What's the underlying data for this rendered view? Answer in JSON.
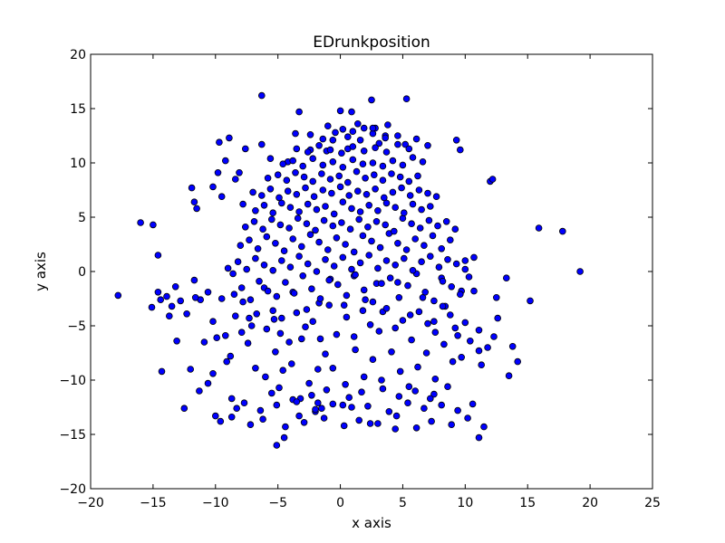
{
  "chart_data": {
    "type": "scatter",
    "title": "EDrunkposition",
    "xlabel": "x axis",
    "ylabel": "y axis",
    "xlim": [
      -20,
      25
    ],
    "ylim": [
      -20,
      20
    ],
    "xticks": [
      -20,
      -15,
      -10,
      -5,
      0,
      5,
      10,
      15,
      20,
      25
    ],
    "xtick_labels": [
      "−20",
      "−15",
      "−10",
      "−5",
      "0",
      "5",
      "10",
      "15",
      "20",
      "25"
    ],
    "yticks": [
      -20,
      -15,
      -10,
      -5,
      0,
      5,
      10,
      15,
      20
    ],
    "ytick_labels": [
      "−20",
      "−15",
      "−10",
      "−5",
      "0",
      "5",
      "10",
      "15",
      "20"
    ],
    "grid": false,
    "marker_color": "#0000ff",
    "x": [
      -17.8,
      -16.0,
      -15.0,
      -14.6,
      -13.9,
      -13.5,
      -14.3,
      -13.1,
      -12.5,
      -12.0,
      -11.9,
      -11.7,
      -11.5,
      -11.7,
      -11.2,
      -11.3,
      -10.9,
      -10.6,
      -10.2,
      -10.0,
      -10.2,
      -9.8,
      -9.7,
      -9.5,
      -9.2,
      -8.9,
      -8.7,
      -8.6,
      -8.4,
      -8.1,
      -7.8,
      -7.6,
      -7.4,
      -6.3,
      -6.3,
      -5.6,
      -5.1,
      -3.3,
      -3.6,
      -3.3,
      -2.4,
      -2.0,
      -1.1,
      0.0,
      0.9,
      1.0,
      2.5,
      2.8,
      3.1,
      5.3,
      -4.5,
      -4.2,
      -3.2,
      -1.8,
      -1.5,
      -0.6,
      0.2,
      0.6,
      1.9,
      2.4,
      3.6,
      4.4,
      5.2,
      6.1,
      7.0,
      7.5,
      9.3,
      9.6,
      11.1,
      12.0,
      12.2,
      15.9,
      17.8,
      19.2,
      15.2,
      14.2,
      13.5,
      12.5,
      11.3,
      10.7,
      11.1,
      12.6,
      13.8,
      13.3,
      10.0,
      9.7,
      9.2,
      8.4,
      8.1,
      7.5,
      6.6,
      5.6,
      4.6,
      3.4,
      2.9,
      2.0,
      1.1,
      0.3,
      -0.8,
      -1.7,
      -2.7,
      -3.8,
      -4.7,
      -5.4,
      -6.1,
      -7.1,
      -7.8,
      -8.4,
      -9.2,
      -9.5,
      -10.2,
      -10.6,
      -11.6,
      -12.3,
      -12.8,
      -13.2,
      -13.7,
      -14.4,
      -15.1,
      -14.6,
      -9.9,
      -9.1,
      -8.8,
      -7.9,
      -6.8,
      -6.0,
      -5.2,
      -4.6,
      -3.9,
      -3.1,
      -2.5,
      -1.8,
      -1.2,
      -0.6,
      0.4,
      1.2,
      1.9,
      2.6,
      3.3,
      4.1,
      4.8,
      5.5,
      6.2,
      6.9,
      7.6,
      8.3,
      9.0,
      9.7,
      10.4,
      11.1,
      11.8,
      12.3,
      -7.3,
      -6.7,
      -5.9,
      -5.3,
      -4.8,
      -4.1,
      -3.5,
      -2.8,
      -2.2,
      -1.6,
      -0.9,
      -0.3,
      0.5,
      1.1,
      1.8,
      2.4,
      3.1,
      3.7,
      4.4,
      5.0,
      5.7,
      6.3,
      7.0,
      7.6,
      8.2,
      8.8,
      9.4,
      10.0,
      -8.5,
      -7.9,
      -7.2,
      -6.5,
      -5.8,
      -5.1,
      -4.4,
      -3.7,
      -3.0,
      -2.3,
      -1.6,
      -0.9,
      -0.2,
      0.5,
      1.2,
      1.9,
      2.6,
      3.3,
      4.0,
      4.7,
      5.4,
      6.1,
      6.8,
      7.5,
      8.2,
      8.9,
      9.6,
      10.3,
      -9.0,
      -8.2,
      -7.5,
      -6.8,
      -6.1,
      -5.4,
      -4.7,
      -4.0,
      -3.3,
      -2.6,
      -1.9,
      -1.2,
      -0.5,
      0.2,
      0.9,
      1.6,
      2.3,
      3.0,
      3.7,
      4.4,
      5.1,
      5.8,
      6.5,
      7.2,
      7.9,
      8.6,
      9.3,
      10.0,
      10.7,
      -8.0,
      -7.3,
      -6.6,
      -5.9,
      -5.2,
      -4.5,
      -3.8,
      -3.1,
      -2.4,
      -1.7,
      -1.0,
      -0.3,
      0.4,
      1.1,
      1.8,
      2.5,
      3.2,
      3.9,
      4.6,
      5.3,
      6.0,
      6.7,
      7.4,
      8.1,
      8.8,
      -7.6,
      -6.9,
      -6.2,
      -5.5,
      -4.8,
      -4.1,
      -3.4,
      -2.7,
      -2.0,
      -1.3,
      -0.6,
      0.1,
      0.8,
      1.5,
      2.2,
      2.9,
      3.6,
      4.3,
      5.0,
      5.7,
      6.4,
      7.1,
      7.8,
      8.5,
      9.2,
      -6.8,
      -6.1,
      -5.4,
      -4.7,
      -4.0,
      -3.3,
      -2.6,
      -1.9,
      -1.2,
      -0.5,
      0.2,
      0.9,
      1.6,
      2.3,
      3.0,
      3.7,
      4.4,
      5.1,
      5.8,
      6.5,
      7.2,
      -7.0,
      -6.3,
      -5.6,
      -4.9,
      -4.2,
      -3.5,
      -2.8,
      -2.1,
      -1.4,
      -0.7,
      0.0,
      0.7,
      1.4,
      2.1,
      2.8,
      3.5,
      4.2,
      4.9,
      5.6,
      6.3,
      7.0,
      7.7,
      -5.8,
      -5.0,
      -4.3,
      -3.6,
      -2.9,
      -2.2,
      -1.5,
      -0.8,
      -0.1,
      0.6,
      1.3,
      2.0,
      2.7,
      3.4,
      4.1,
      4.8,
      5.5,
      6.2,
      -4.6,
      -3.8,
      -3.0,
      -2.2,
      -1.4,
      -0.6,
      0.2,
      1.0,
      1.8,
      2.6,
      3.4,
      4.2,
      5.0,
      5.8,
      6.6,
      -3.5,
      -2.6,
      -1.7,
      -0.8,
      0.1,
      1.0,
      1.9,
      2.8,
      3.7,
      4.6,
      5.5,
      -2.4,
      -1.4,
      -0.4,
      0.6,
      1.6,
      2.6,
      3.6,
      4.6,
      -1.0,
      0.2,
      1.4,
      2.6,
      3.8,
      -5.5,
      -4.9,
      -3.8,
      -2.3,
      -1.1,
      0.7,
      1.7,
      3.4,
      4.7,
      6.0,
      7.2,
      8.6,
      -8.3,
      -7.7,
      -6.4,
      -5.1,
      -3.5,
      -2.0,
      -0.6,
      0.9,
      2.2,
      3.9,
      5.4,
      6.7,
      8.1,
      9.4,
      10.6,
      -9.6,
      -8.7,
      -7.2,
      -6.2,
      -4.4,
      -2.9,
      -1.3,
      0.3,
      1.5,
      3.0,
      4.5,
      6.1,
      7.3,
      8.9,
      10.2,
      11.5
    ],
    "y": [
      -2.2,
      4.5,
      4.3,
      1.5,
      -2.3,
      -3.2,
      -9.2,
      -6.4,
      -12.6,
      -9.0,
      7.7,
      6.4,
      5.8,
      -0.8,
      -2.6,
      -11.0,
      -6.5,
      -10.3,
      -9.4,
      -13.3,
      7.8,
      9.1,
      11.9,
      6.9,
      10.2,
      12.3,
      -11.7,
      -0.2,
      8.5,
      9.1,
      6.2,
      11.3,
      -6.6,
      16.2,
      11.7,
      10.4,
      -16.0,
      14.7,
      12.7,
      -13.3,
      11.2,
      -12.9,
      11.1,
      14.8,
      14.7,
      12.9,
      15.8,
      13.2,
      11.8,
      15.9,
      -15.3,
      10.1,
      -11.7,
      -12.1,
      -12.6,
      12.1,
      -12.3,
      11.3,
      13.2,
      -14.0,
      12.5,
      -14.5,
      11.7,
      12.2,
      11.6,
      -11.3,
      12.1,
      11.2,
      -15.3,
      8.3,
      8.5,
      4.0,
      3.7,
      0.0,
      -2.7,
      -8.3,
      -9.6,
      -2.4,
      -8.6,
      -1.8,
      -7.3,
      -4.3,
      -6.9,
      -0.6,
      1.0,
      -1.8,
      -5.2,
      -3.2,
      -0.6,
      -4.6,
      -2.4,
      -4.0,
      -1.0,
      -3.7,
      -1.1,
      -2.6,
      -0.4,
      -3.1,
      -0.7,
      -2.9,
      -3.5,
      -1.9,
      -4.3,
      -3.6,
      -1.5,
      -5.0,
      -2.8,
      -4.1,
      -5.9,
      -2.5,
      -4.6,
      -1.9,
      -2.4,
      -3.9,
      -2.7,
      -1.4,
      -4.1,
      -2.6,
      -3.3,
      -1.9,
      -6.1,
      -8.3,
      -7.8,
      -5.6,
      -8.9,
      -9.7,
      -7.4,
      -9.1,
      -8.5,
      -6.2,
      -10.3,
      -9.0,
      -7.6,
      -8.9,
      -10.4,
      -7.2,
      -9.7,
      -8.1,
      -10.0,
      -7.4,
      -9.2,
      -10.6,
      -8.8,
      -7.5,
      -9.9,
      -6.7,
      -8.3,
      -7.9,
      -6.4,
      -5.4,
      -7.0,
      -6.0,
      -4.3,
      -3.9,
      -5.3,
      -4.4,
      -5.7,
      -6.5,
      -3.8,
      -5.1,
      -4.6,
      -6.2,
      -3.1,
      -5.8,
      -4.2,
      -6.0,
      -3.6,
      -4.9,
      -5.5,
      -3.4,
      -5.2,
      -4.5,
      -6.3,
      -3.7,
      -4.8,
      -5.6,
      -3.2,
      -4.0,
      -5.9,
      -4.7,
      -2.1,
      -1.5,
      -2.6,
      -0.9,
      -1.8,
      -2.3,
      -1.0,
      -2.0,
      -0.4,
      -1.6,
      -2.5,
      -0.8,
      -1.2,
      -2.2,
      -0.3,
      -1.7,
      -2.8,
      -1.1,
      -0.6,
      -2.4,
      -1.3,
      -0.2,
      -1.9,
      -2.7,
      -0.9,
      -1.4,
      -2.1,
      -0.5,
      0.3,
      0.9,
      0.2,
      1.2,
      0.6,
      0.1,
      1.0,
      0.4,
      1.4,
      0.7,
      0.0,
      1.1,
      0.5,
      1.3,
      0.2,
      0.8,
      1.5,
      0.3,
      1.0,
      0.6,
      1.2,
      0.1,
      0.9,
      1.4,
      0.4,
      1.1,
      0.7,
      0.2,
      1.3,
      2.4,
      2.9,
      2.1,
      3.2,
      2.6,
      1.9,
      3.0,
      2.3,
      3.4,
      2.7,
      2.0,
      3.1,
      2.5,
      1.8,
      3.3,
      2.8,
      2.2,
      3.5,
      2.6,
      2.0,
      3.0,
      2.4,
      3.3,
      2.1,
      2.9,
      4.1,
      4.6,
      3.9,
      4.8,
      4.3,
      4.0,
      4.9,
      4.4,
      3.8,
      4.7,
      4.2,
      4.5,
      3.9,
      4.8,
      4.1,
      4.6,
      4.3,
      3.7,
      4.9,
      4.4,
      4.0,
      4.7,
      4.2,
      4.6,
      3.9,
      5.6,
      6.1,
      5.4,
      6.3,
      5.9,
      5.5,
      6.2,
      5.7,
      6.0,
      5.3,
      6.4,
      5.8,
      5.5,
      6.1,
      5.6,
      6.3,
      5.9,
      5.4,
      6.2,
      5.7,
      6.0,
      7.3,
      7.0,
      7.6,
      6.8,
      7.4,
      7.1,
      7.7,
      6.9,
      7.5,
      7.2,
      7.8,
      7.0,
      7.4,
      7.1,
      7.6,
      6.8,
      7.3,
      7.7,
      7.0,
      7.5,
      7.2,
      6.9,
      8.6,
      8.9,
      8.4,
      9.1,
      8.7,
      8.3,
      9.0,
      8.5,
      8.8,
      8.2,
      9.2,
      8.6,
      8.9,
      8.4,
      9.0,
      8.7,
      8.3,
      8.8,
      9.9,
      10.2,
      9.7,
      10.4,
      9.8,
      10.1,
      9.6,
      10.3,
      9.9,
      10.0,
      9.7,
      10.2,
      9.8,
      10.5,
      10.1,
      11.3,
      11.0,
      11.6,
      11.2,
      10.9,
      11.5,
      11.1,
      11.4,
      11.0,
      11.7,
      11.3,
      12.6,
      12.2,
      12.8,
      12.4,
      12.1,
      12.7,
      12.3,
      12.5,
      13.4,
      13.1,
      13.6,
      13.2,
      13.5,
      -11.2,
      -10.7,
      -11.8,
      -11.4,
      -10.9,
      -11.6,
      -11.1,
      -10.8,
      -11.5,
      -11.0,
      -11.7,
      -10.6,
      -12.6,
      -12.1,
      -12.8,
      -12.3,
      -12.0,
      -12.7,
      -12.2,
      -12.5,
      -12.4,
      -12.9,
      -12.1,
      -12.6,
      -12.3,
      -12.8,
      -12.2,
      -13.8,
      -13.4,
      -14.1,
      -13.6,
      -14.3,
      -13.9,
      -13.5,
      -14.2,
      -13.7,
      -14.0,
      -13.3,
      -14.4,
      -13.8,
      -14.1,
      -13.5,
      -14.3
    ]
  }
}
